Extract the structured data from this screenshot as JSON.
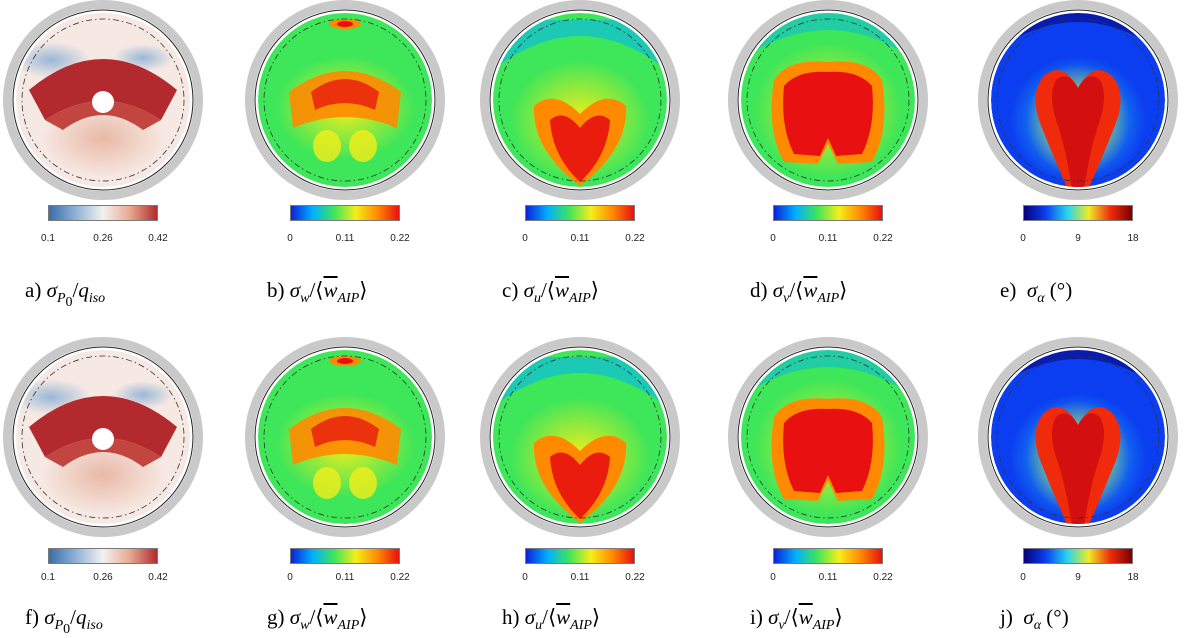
{
  "panels": [
    {
      "id": "a",
      "letter": "a)",
      "kind": "p0",
      "colormap": "diverging",
      "ticks": [
        "0.1",
        "0.26",
        "0.42"
      ]
    },
    {
      "id": "b",
      "letter": "b)",
      "kind": "w",
      "colormap": "jet",
      "ticks": [
        "0",
        "0.11",
        "0.22"
      ]
    },
    {
      "id": "c",
      "letter": "c)",
      "kind": "u",
      "colormap": "jet",
      "ticks": [
        "0",
        "0.11",
        "0.22"
      ]
    },
    {
      "id": "d",
      "letter": "d)",
      "kind": "v",
      "colormap": "jet",
      "ticks": [
        "0",
        "0.11",
        "0.22"
      ]
    },
    {
      "id": "e",
      "letter": "e)",
      "kind": "alpha",
      "colormap": "jet-dark",
      "ticks": [
        "0",
        "9",
        "18"
      ]
    },
    {
      "id": "f",
      "letter": "f)",
      "kind": "p0",
      "colormap": "diverging",
      "ticks": [
        "0.1",
        "0.26",
        "0.42"
      ]
    },
    {
      "id": "g",
      "letter": "g)",
      "kind": "w",
      "colormap": "jet",
      "ticks": [
        "0",
        "0.11",
        "0.22"
      ]
    },
    {
      "id": "h",
      "letter": "h)",
      "kind": "u",
      "colormap": "jet",
      "ticks": [
        "0",
        "0.11",
        "0.22"
      ]
    },
    {
      "id": "i",
      "letter": "i)",
      "kind": "v",
      "colormap": "jet",
      "ticks": [
        "0",
        "0.11",
        "0.22"
      ]
    },
    {
      "id": "j",
      "letter": "j)",
      "kind": "alpha",
      "colormap": "jet-dark",
      "ticks": [
        "0",
        "9",
        "18"
      ]
    }
  ],
  "labels": {
    "sigma": "σ",
    "p_sub": "P",
    "p_sub2": "0",
    "q": "q",
    "iso": "iso",
    "w": "w",
    "u": "u",
    "v": "v",
    "AIP": "AIP",
    "alpha": "α",
    "deg": "(°)",
    "slash": "/",
    "lang": "⟨",
    "rang": "⟩"
  },
  "colors": {
    "diverging": [
      "#3a6ea8",
      "#8fb2d6",
      "#f4f1ef",
      "#e6a991",
      "#b32a2e"
    ],
    "jet": [
      "#0b21d8",
      "#00b0ff",
      "#3ee65a",
      "#f4ee1a",
      "#ff8a00",
      "#e81010"
    ],
    "jet_dark": [
      "#07007a",
      "#0b3ef0",
      "#26d4ef",
      "#f0ea26",
      "#ef2b0c",
      "#7a0000"
    ],
    "ring": "#c9c9c9"
  }
}
